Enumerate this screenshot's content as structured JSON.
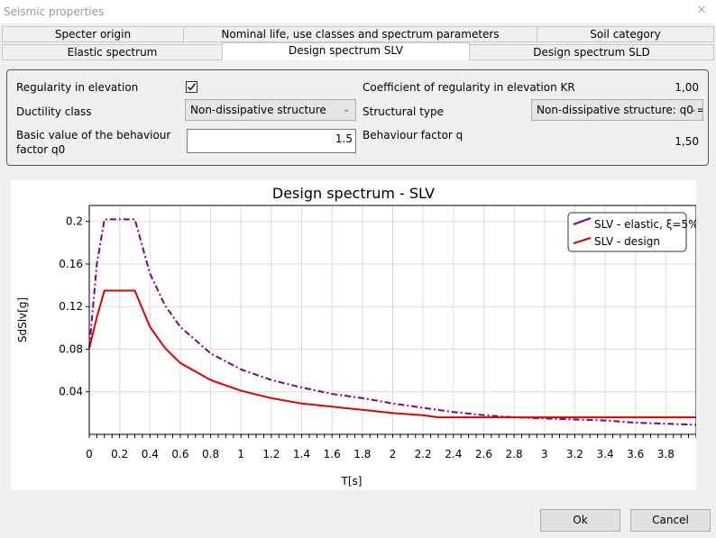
{
  "window": {
    "title": "Seismic properties"
  },
  "tabs_row1": [
    "Specter origin",
    "Nominal life, use classes and spectrum parameters",
    "Soil category"
  ],
  "tabs_row2": [
    "Elastic spectrum",
    "Design spectrum SLV",
    "Design spectrum SLD"
  ],
  "form": {
    "regularity_label": "Regularity in elevation",
    "regularity_checked": true,
    "ductility_label": "Ductility class",
    "ductility_value": "Non-dissipative structure",
    "behaviour_basic_label_1": "Basic value of the behaviour",
    "behaviour_basic_label_2": "factor q0",
    "behaviour_basic_value": "1.5",
    "kr_label": "Coefficient of regularity in elevation KR",
    "kr_value": "1,00",
    "structural_type_label": "Structural type",
    "structural_type_value": "Non-dissipative structure: q0 =",
    "q_label": "Behaviour factor q",
    "q_value": "1,50"
  },
  "buttons": {
    "ok": "Ok",
    "cancel": "Cancel"
  },
  "colors": {
    "elastic": "#800080",
    "design": "#e00000"
  },
  "chart_data": {
    "type": "line",
    "title": "Design spectrum - SLV",
    "xlabel": "T[s]",
    "ylabel": "SdSlv[g]",
    "xlim": [
      0,
      4.0
    ],
    "ylim": [
      0,
      0.215
    ],
    "x_ticks": [
      "0",
      "0.2",
      "0.4",
      "0.6",
      "0.8",
      "1",
      "1.2",
      "1.4",
      "1.6",
      "1.8",
      "2",
      "2.2",
      "2.4",
      "2.6",
      "2.8",
      "3",
      "3.2",
      "3.4",
      "3.6",
      "3.8"
    ],
    "y_ticks": [
      "0.04",
      "0.08",
      "0.12",
      "0.16",
      "0.2"
    ],
    "grid": true,
    "legend_position": "top-right",
    "series": [
      {
        "name": "SLV - elastic, ξ=5%",
        "style": "dashdot",
        "x": [
          0,
          0.05,
          0.1,
          0.2,
          0.3,
          0.4,
          0.5,
          0.6,
          0.8,
          1.0,
          1.2,
          1.4,
          1.6,
          1.8,
          2.0,
          2.2,
          2.4,
          2.6,
          2.8,
          3.0,
          3.2,
          3.4,
          3.6,
          3.8,
          4.0
        ],
        "y": [
          0.081,
          0.16,
          0.202,
          0.202,
          0.202,
          0.151,
          0.121,
          0.101,
          0.076,
          0.061,
          0.051,
          0.044,
          0.038,
          0.034,
          0.029,
          0.025,
          0.021,
          0.018,
          0.016,
          0.015,
          0.014,
          0.013,
          0.011,
          0.01,
          0.009
        ]
      },
      {
        "name": "SLV - design",
        "style": "solid",
        "x": [
          0,
          0.05,
          0.1,
          0.2,
          0.3,
          0.4,
          0.5,
          0.6,
          0.8,
          1.0,
          1.2,
          1.4,
          1.6,
          1.8,
          2.0,
          2.2,
          2.3,
          2.6,
          3.0,
          3.4,
          4.0
        ],
        "y": [
          0.081,
          0.11,
          0.135,
          0.135,
          0.135,
          0.101,
          0.081,
          0.067,
          0.051,
          0.041,
          0.034,
          0.029,
          0.026,
          0.023,
          0.02,
          0.018,
          0.016,
          0.016,
          0.016,
          0.016,
          0.016
        ]
      }
    ]
  }
}
